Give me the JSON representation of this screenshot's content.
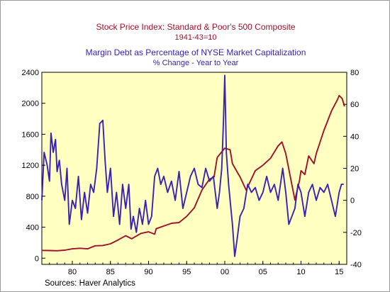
{
  "chart_data": {
    "type": "line",
    "title": "Stock Price Index: Standard & Poor's 500 Composite",
    "subtitle": "1941-43=10",
    "title2": "Margin Debt as Percentage of NYSE Market Capitalization",
    "subtitle2": "% Change - Year to Year",
    "source": "Sources:  Haver Analytics",
    "colors": {
      "sp500": "#a0112a",
      "margin": "#3a22b4",
      "plot_bg": "#ffffc2"
    },
    "grid": false,
    "xlim": [
      1976,
      2016
    ],
    "x_ticks": [
      {
        "value": 1980,
        "label": "80"
      },
      {
        "value": 1985,
        "label": "85"
      },
      {
        "value": 1990,
        "label": "90"
      },
      {
        "value": 1995,
        "label": "95"
      },
      {
        "value": 2000,
        "label": "00"
      },
      {
        "value": 2005,
        "label": "05"
      },
      {
        "value": 2010,
        "label": "10"
      },
      {
        "value": 2015,
        "label": "15"
      }
    ],
    "y_left": {
      "lim": [
        -80,
        2400
      ],
      "ticks": [
        0,
        400,
        800,
        1200,
        1600,
        2000,
        2400
      ]
    },
    "y_right": {
      "lim": [
        -40,
        80
      ],
      "ticks": [
        -40,
        -20,
        0,
        20,
        40,
        60,
        80
      ]
    },
    "series": [
      {
        "axis": "left",
        "x": [
          1976,
          1977,
          1978,
          1979,
          1980,
          1981,
          1982,
          1983,
          1984,
          1985,
          1986,
          1987,
          1987.8,
          1988,
          1989,
          1990,
          1990.8,
          1991,
          1992,
          1993,
          1994,
          1995,
          1996,
          1997,
          1998,
          1998.6,
          1999,
          1999.5,
          2000,
          2000.7,
          2001,
          2001.7,
          2002,
          2002.8,
          2003,
          2004,
          2005,
          2006,
          2007,
          2007.5,
          2008,
          2008.8,
          2009.2,
          2009.8,
          2010,
          2010.5,
          2011,
          2011.7,
          2012,
          2013,
          2014,
          2014.8,
          2015,
          2015.4,
          2015.7
        ],
        "y": [
          100,
          98,
          96,
          103,
          120,
          128,
          120,
          160,
          163,
          185,
          235,
          290,
          250,
          262,
          320,
          340,
          310,
          380,
          415,
          450,
          460,
          540,
          650,
          880,
          1020,
          1050,
          1300,
          1360,
          1420,
          1400,
          1220,
          1100,
          1050,
          880,
          920,
          1130,
          1200,
          1290,
          1450,
          1500,
          1350,
          950,
          750,
          1000,
          1130,
          1080,
          1320,
          1220,
          1350,
          1650,
          1900,
          2050,
          2100,
          2060,
          1960
        ]
      },
      {
        "axis": "right",
        "x": [
          1976,
          1976.3,
          1976.7,
          1977,
          1977.2,
          1977.5,
          1977.8,
          1978,
          1978.3,
          1978.6,
          1979,
          1979.3,
          1979.6,
          1980,
          1980.4,
          1980.8,
          1981.2,
          1981.6,
          1982,
          1982.4,
          1982.8,
          1983.2,
          1983.6,
          1984,
          1984.3,
          1984.6,
          1985,
          1985.4,
          1985.8,
          1986.2,
          1986.6,
          1987,
          1987.4,
          1987.7,
          1988,
          1988.4,
          1988.8,
          1989.2,
          1989.6,
          1990,
          1990.4,
          1990.8,
          1991.2,
          1991.6,
          1992,
          1992.5,
          1993,
          1993.5,
          1994,
          1994.5,
          1995,
          1995.5,
          1996,
          1996.5,
          1997,
          1997.5,
          1998,
          1998.5,
          1999,
          1999.3,
          1999.6,
          1999.8,
          2000,
          2000.2,
          2000.5,
          2000.8,
          2001,
          2001.3,
          2001.6,
          2002,
          2002.5,
          2003,
          2003.5,
          2004,
          2004.5,
          2005,
          2005.5,
          2006,
          2006.5,
          2007,
          2007.3,
          2007.6,
          2008,
          2008.4,
          2008.8,
          2009.2,
          2009.6,
          2010,
          2010.5,
          2011,
          2011.5,
          2012,
          2012.5,
          2013,
          2013.5,
          2014,
          2014.5,
          2015,
          2015.3,
          2015.6
        ],
        "y": [
          0,
          30,
          22,
          12,
          42,
          30,
          38,
          18,
          25,
          10,
          0,
          20,
          -15,
          0,
          -5,
          15,
          -12,
          5,
          -8,
          10,
          5,
          20,
          48,
          50,
          25,
          5,
          20,
          -10,
          5,
          -15,
          10,
          -5,
          10,
          -18,
          -10,
          -20,
          -5,
          -15,
          0,
          -15,
          -10,
          15,
          20,
          10,
          15,
          5,
          12,
          0,
          18,
          -5,
          5,
          15,
          20,
          10,
          8,
          20,
          12,
          15,
          -5,
          5,
          20,
          45,
          78,
          30,
          10,
          -5,
          -15,
          -35,
          -25,
          -10,
          -5,
          10,
          5,
          8,
          0,
          5,
          15,
          5,
          10,
          0,
          10,
          20,
          5,
          -15,
          -10,
          -5,
          10,
          5,
          -10,
          5,
          10,
          0,
          8,
          5,
          10,
          0,
          -10,
          5,
          10,
          10
        ]
      }
    ]
  }
}
